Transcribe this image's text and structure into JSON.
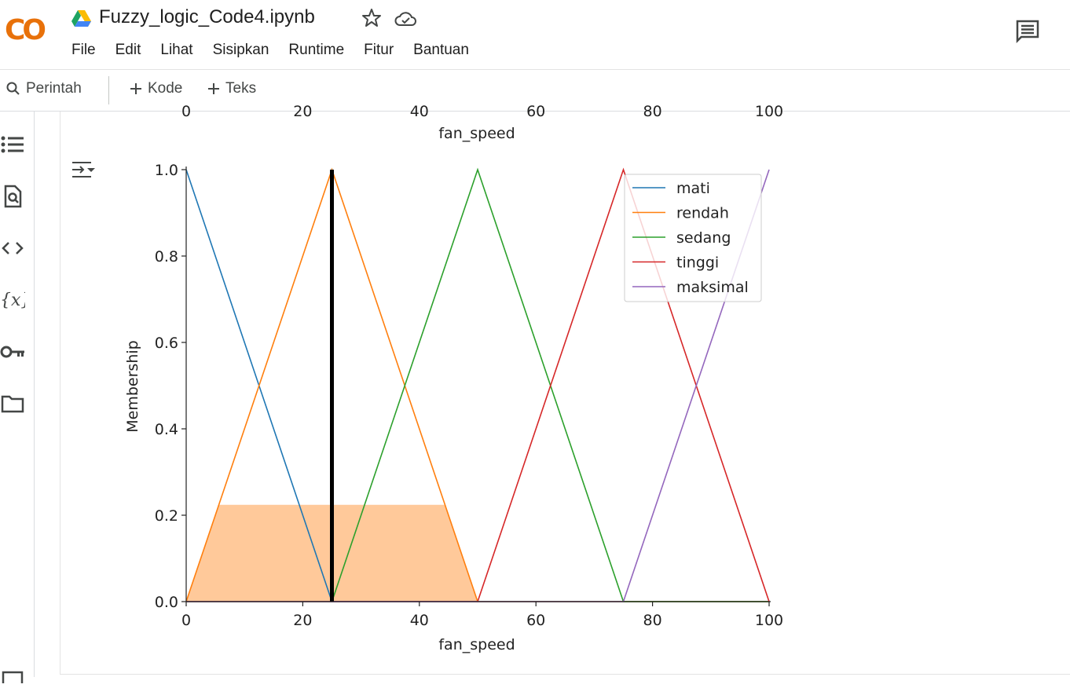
{
  "app": {
    "logo_text": "CO",
    "title": "Fuzzy_logic_Code4.ipynb"
  },
  "menu": [
    "File",
    "Edit",
    "Lihat",
    "Sisipkan",
    "Runtime",
    "Fitur",
    "Bantuan"
  ],
  "toolbar": {
    "command_label": "Perintah",
    "add_code_label": "Kode",
    "add_text_label": "Teks"
  },
  "sidebar_icons": [
    "toc-icon",
    "find-icon",
    "code-snippets-icon",
    "variables-icon",
    "secrets-key-icon",
    "files-folder-icon",
    "terminal-icon"
  ],
  "icons": {
    "drive": "google-drive-icon",
    "star": "star-icon",
    "cloud": "cloud-saved-icon",
    "comments": "comments-icon",
    "output": "output-toggle-icon"
  },
  "colors": {
    "mati": "#1f77b4",
    "rendah": "#ff7f0e",
    "sedang": "#2ca02c",
    "tinggi": "#d62728",
    "maksimal": "#9467bd",
    "fill": "#ffc99a",
    "logo_orange": "#f9ab00",
    "logo_dark": "#e8710a"
  },
  "chart_data": [
    {
      "type": "line",
      "partial": true,
      "xlabel": "fan_speed",
      "x_ticks": [
        "0",
        "20",
        "40",
        "60",
        "80",
        "100"
      ]
    },
    {
      "type": "line",
      "xlabel": "fan_speed",
      "ylabel": "Membership",
      "xlim": [
        0,
        100
      ],
      "ylim": [
        0,
        1
      ],
      "x_ticks": [
        "0",
        "20",
        "40",
        "60",
        "80",
        "100"
      ],
      "y_ticks": [
        "0.0",
        "0.2",
        "0.4",
        "0.6",
        "0.8",
        "1.0"
      ],
      "legend_position": "top-right",
      "series": [
        {
          "name": "mati",
          "x": [
            0,
            25,
            100
          ],
          "y": [
            1,
            0,
            0
          ]
        },
        {
          "name": "rendah",
          "x": [
            0,
            25,
            50,
            100
          ],
          "y": [
            0,
            1,
            0,
            0
          ]
        },
        {
          "name": "sedang",
          "x": [
            0,
            25,
            50,
            75,
            100
          ],
          "y": [
            0,
            0,
            1,
            0,
            0
          ]
        },
        {
          "name": "tinggi",
          "x": [
            0,
            50,
            75,
            100
          ],
          "y": [
            0,
            0,
            1,
            0
          ]
        },
        {
          "name": "maksimal",
          "x": [
            0,
            75,
            100
          ],
          "y": [
            0,
            0,
            1
          ]
        }
      ],
      "activation_fill": {
        "x": [
          0,
          5.6,
          44.4,
          50
        ],
        "y": [
          0,
          0.224,
          0.224,
          0
        ]
      },
      "output_marker": {
        "x": 25,
        "y": 1.0
      }
    }
  ]
}
